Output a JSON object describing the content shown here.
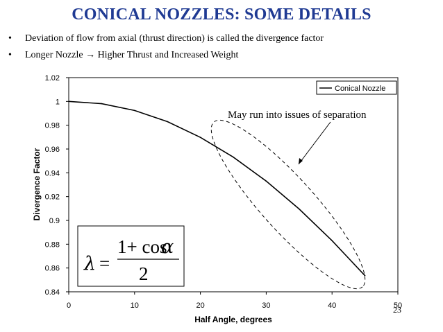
{
  "slide": {
    "title": "CONICAL NOZZLES: SOME DETAILS",
    "bullets": [
      "Deviation of flow from axial (thrust direction) is called the divergence factor",
      "Longer Nozzle → Higher Thrust and Increased Weight"
    ],
    "bullet_symbol": "•",
    "slide_number": "23",
    "title_color": "#1f3a93"
  },
  "chart_data": {
    "type": "line",
    "title": "",
    "xlabel": "Half Angle, degrees",
    "ylabel": "Divergence Factor",
    "xlim": [
      0,
      50
    ],
    "ylim": [
      0.84,
      1.02
    ],
    "xticks": [
      0,
      10,
      20,
      30,
      40,
      50
    ],
    "yticks": [
      0.84,
      0.86,
      0.88,
      0.9,
      0.92,
      0.94,
      0.96,
      0.98,
      1,
      1.02
    ],
    "xtick_labels": [
      "0",
      "10",
      "20",
      "30",
      "40",
      "50"
    ],
    "ytick_labels": [
      "0.84",
      "0.86",
      "0.88",
      "0.9",
      "0.92",
      "0.94",
      "0.96",
      "0.98",
      "1",
      "1.02"
    ],
    "grid": false,
    "legend_position": "top-right",
    "series": [
      {
        "name": "Conical Nozzle",
        "x": [
          0,
          5,
          10,
          15,
          20,
          25,
          30,
          35,
          40,
          45
        ],
        "values": [
          1.0,
          0.9981,
          0.9924,
          0.983,
          0.9698,
          0.9532,
          0.933,
          0.9096,
          0.883,
          0.8536
        ]
      }
    ],
    "annotation": "May run into issues of separation",
    "formula": {
      "lhs": "λ",
      "eq": "=",
      "numerator": "1+ cos",
      "alpha": "α",
      "denominator": "2"
    }
  }
}
